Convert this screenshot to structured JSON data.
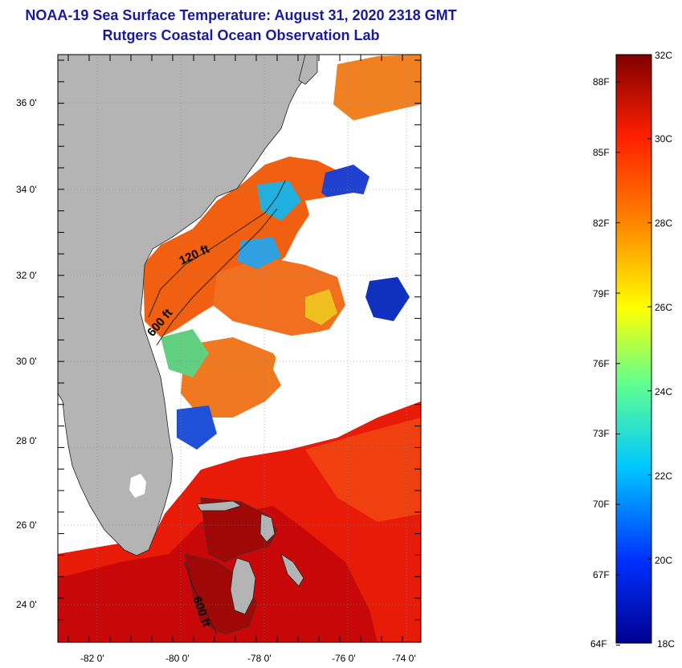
{
  "header": {
    "title": "NOAA-19 Sea Surface Temperature:  August 31, 2020 2318 GMT",
    "subtitle": "Rutgers Coastal Ocean Observation Lab"
  },
  "axes": {
    "lat_labels": [
      "36 0'",
      "34 0'",
      "32 0'",
      "30 0'",
      "28 0'",
      "26 0'",
      "24 0'"
    ],
    "lon_labels": [
      "-82 0'",
      "-80 0'",
      "-78 0'",
      "-76 0'",
      "-74 0'"
    ]
  },
  "contours": {
    "labels": [
      "120 ft",
      "600 ft",
      "600 ft"
    ]
  },
  "colorbar": {
    "celsius_labels": [
      "32C",
      "30C",
      "28C",
      "26C",
      "24C",
      "22C",
      "20C",
      "18C"
    ],
    "fahrenheit_labels": [
      "88F",
      "85F",
      "82F",
      "79F",
      "76F",
      "73F",
      "70F",
      "67F",
      "64F"
    ],
    "colors": [
      "#800000",
      "#ff2000",
      "#ff8000",
      "#ffff00",
      "#80ff80",
      "#00ffff",
      "#0060ff",
      "#000090"
    ]
  },
  "map": {
    "land_color": "#b4b4b4",
    "cloud_color": "#ffffff"
  }
}
